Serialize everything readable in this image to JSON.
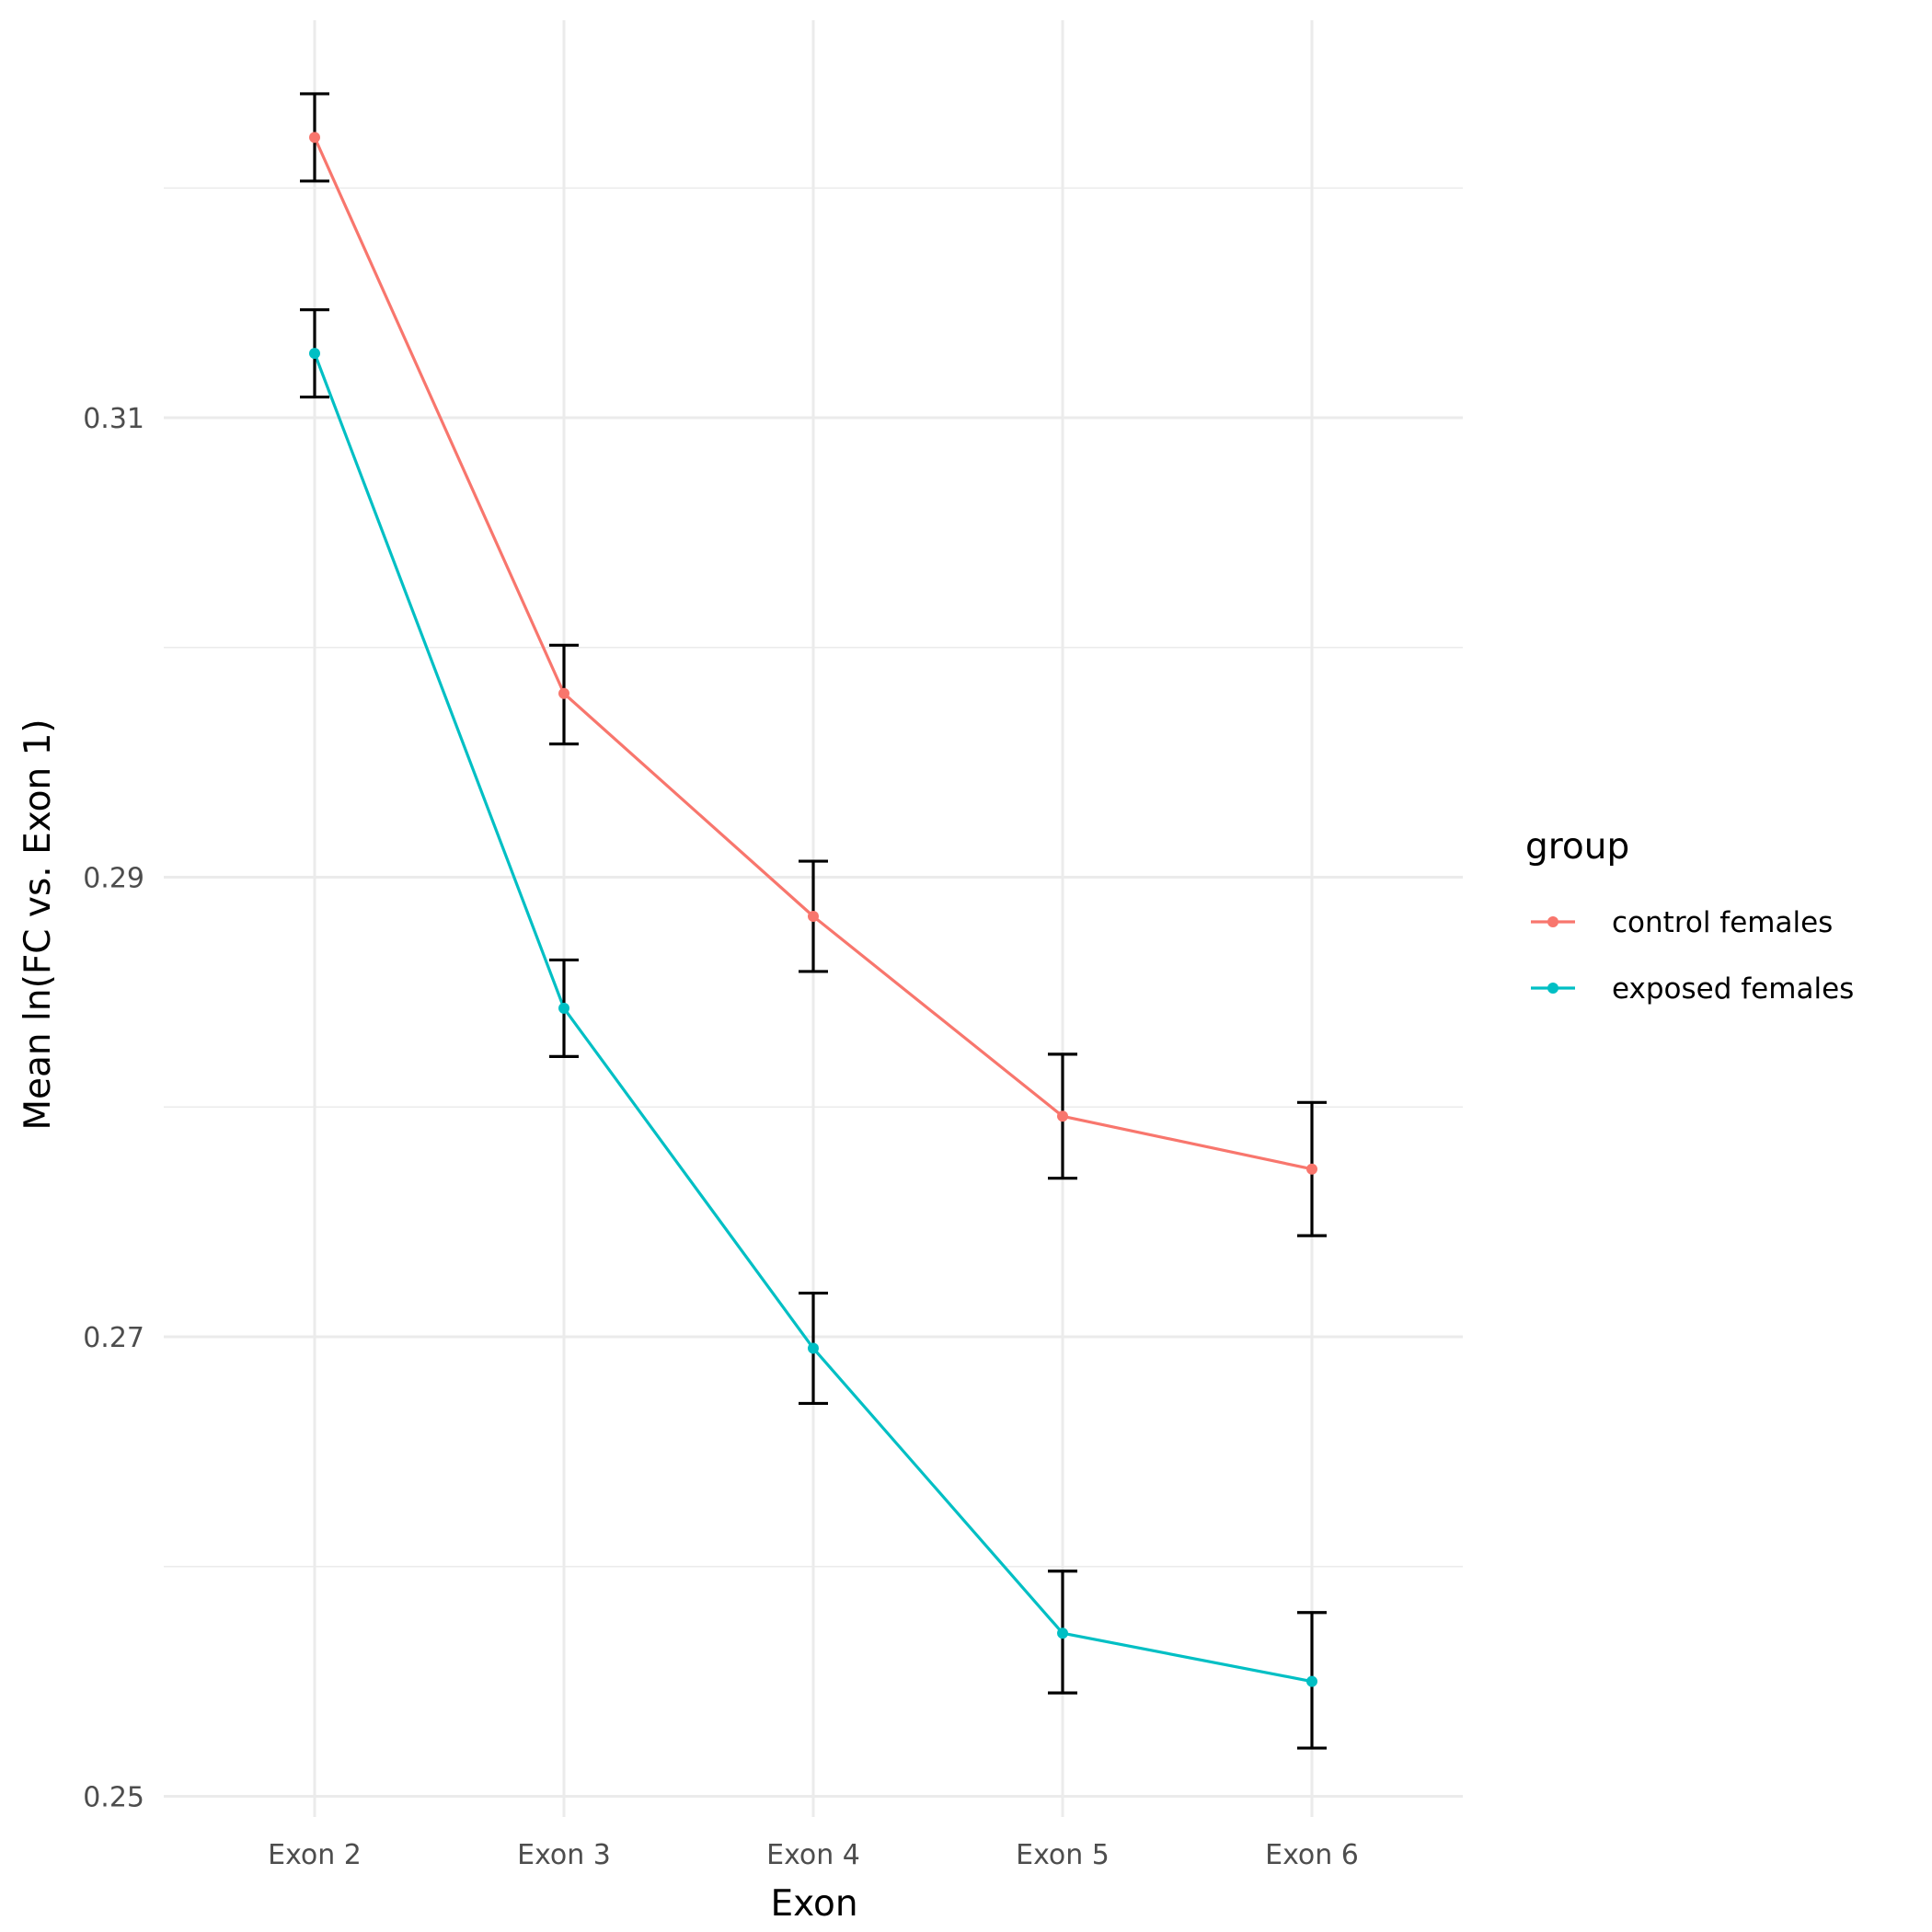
{
  "chart_data": {
    "type": "line",
    "title": "",
    "xlabel": "Exon",
    "ylabel": "Mean ln(FC vs. Exon 1)",
    "categories": [
      "Exon 2",
      "Exon 3",
      "Exon 4",
      "Exon 5",
      "Exon 6"
    ],
    "ylim": [
      0.2491,
      0.3273
    ],
    "yticks": [
      0.25,
      0.27,
      0.29,
      0.31
    ],
    "ytick_labels": [
      "0.25",
      "0.27",
      "0.29",
      "0.31"
    ],
    "grid": true,
    "legend": {
      "title": "group",
      "position": "right"
    },
    "series": [
      {
        "name": "control females",
        "color": "#F8766D",
        "values": [
          0.3222,
          0.298,
          0.2883,
          0.2796,
          0.2773
        ],
        "err_low": [
          0.3203,
          0.2958,
          0.2859,
          0.2769,
          0.2744
        ],
        "err_high": [
          0.3241,
          0.3001,
          0.2907,
          0.2823,
          0.2802
        ]
      },
      {
        "name": "exposed females",
        "color": "#00BFC4",
        "values": [
          0.3128,
          0.2843,
          0.2695,
          0.2571,
          0.255
        ],
        "err_low": [
          0.3109,
          0.2822,
          0.2671,
          0.2545,
          0.2521
        ],
        "err_high": [
          0.3147,
          0.2864,
          0.2719,
          0.2598,
          0.258
        ]
      }
    ],
    "errorbar_color": "#000000"
  }
}
